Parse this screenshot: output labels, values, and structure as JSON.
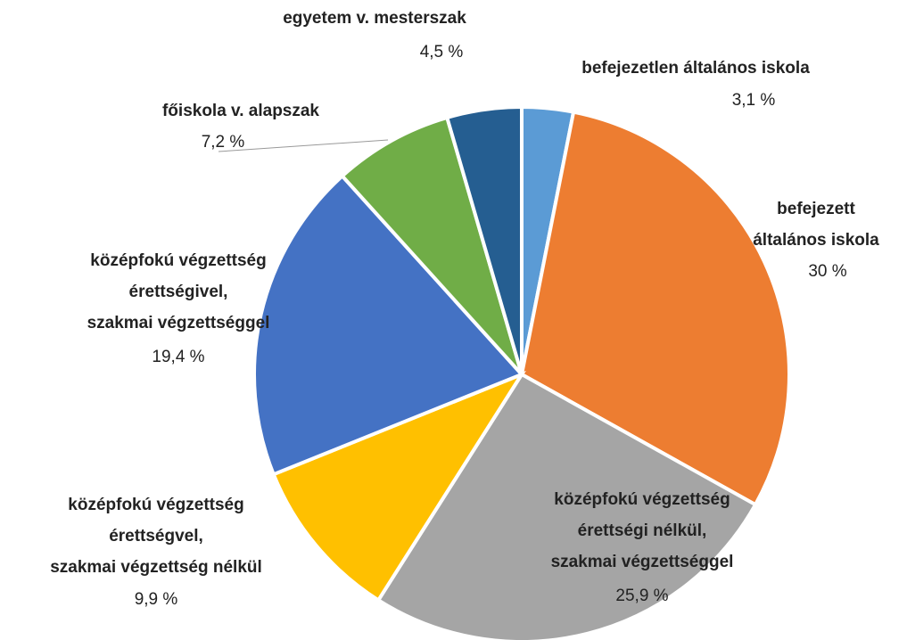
{
  "chart_data": {
    "type": "pie",
    "categories": [
      "befejezetlen általános iskola",
      "befejezett\náltalános iskola",
      "középfokú végzettség\nérettségi nélkül,\nszakmai végzettséggel",
      "középfokú végzettség\nérettségvel,\nszakmai végzettség nélkül",
      "középfokú végzettség\nérettségivel,\nszakmai végzettséggel",
      "főiskola v. alapszak",
      "egyetem v. mesterszak"
    ],
    "values": [
      3.1,
      30,
      25.9,
      9.9,
      19.4,
      7.2,
      4.5
    ],
    "value_labels": [
      "3,1 %",
      "30 %",
      "25,9 %",
      "9,9 %",
      "19,4 %",
      "7,2 %",
      "4,5 %"
    ],
    "colors": [
      "#5b9bd5",
      "#ed7d31",
      "#a5a5a5",
      "#ffc000",
      "#4472c4",
      "#70ad47",
      "#255e91"
    ]
  }
}
